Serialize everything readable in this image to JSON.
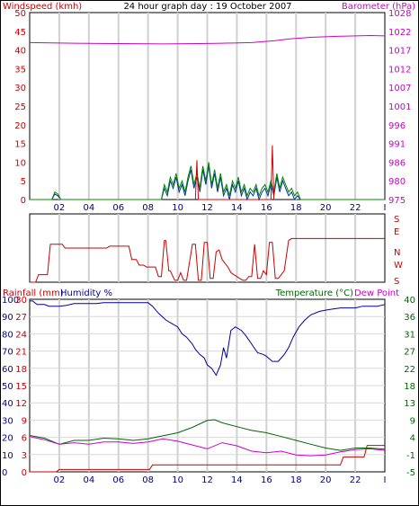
{
  "chart_data": [
    {
      "type": "line",
      "panel": "wind-barometer",
      "title": "24 hour graph day : 19 October 2007",
      "ylabel_left": "Windspeed (kmh)",
      "ylabel_right": "Barometer (hPa)",
      "x_ticks": [
        "02",
        "04",
        "06",
        "08",
        "10",
        "12",
        "14",
        "16",
        "18",
        "20",
        "22",
        "I"
      ],
      "left_ticks": [
        "0",
        "5",
        "10",
        "15",
        "20",
        "25",
        "30",
        "35",
        "40",
        "45",
        "50"
      ],
      "right_ticks": [
        "975",
        "980",
        "986",
        "991",
        "996",
        "1001",
        "1007",
        "1012",
        "1017",
        "1022",
        "1028"
      ],
      "ylim_left": [
        0,
        50
      ],
      "ylim_right": [
        975,
        1028
      ],
      "grid": true,
      "series": [
        {
          "name": "Barometer",
          "axis": "right",
          "color": "#cc00cc",
          "x": [
            0,
            3,
            6,
            9,
            11.5,
            13,
            15,
            16.5,
            17.5,
            19,
            21,
            23,
            24
          ],
          "y": [
            1019.5,
            1019.3,
            1019.2,
            1019.1,
            1019.2,
            1019.3,
            1019.5,
            1020,
            1020.5,
            1021,
            1021.3,
            1021.5,
            1021.4
          ]
        },
        {
          "name": "Windspeed",
          "axis": "left",
          "color": "#003399",
          "x": [
            0,
            1.5,
            1.7,
            1.9,
            2.1,
            8.9,
            9.1,
            9.3,
            9.5,
            9.7,
            9.9,
            10.1,
            10.3,
            10.5,
            10.7,
            10.9,
            11.1,
            11.3,
            11.5,
            11.7,
            11.9,
            12.1,
            12.3,
            12.5,
            12.7,
            12.9,
            13.1,
            13.3,
            13.5,
            13.7,
            13.9,
            14.1,
            14.3,
            14.5,
            14.7,
            14.9,
            15.1,
            15.3,
            15.5,
            15.7,
            15.9,
            16.1,
            16.3,
            16.5,
            16.7,
            16.9,
            17.1,
            17.3,
            17.5,
            17.7,
            17.9,
            18.1,
            18.3,
            24
          ],
          "y": [
            0,
            0,
            1.5,
            1,
            0,
            0,
            3,
            1,
            5,
            3,
            6,
            2,
            4,
            1,
            5,
            8,
            3,
            6,
            2,
            8,
            4,
            9,
            3,
            7,
            2,
            6,
            1,
            3,
            0,
            4,
            2,
            5,
            1,
            3,
            0,
            2,
            1,
            3,
            0,
            2,
            3,
            1,
            4,
            1,
            6,
            2,
            5,
            3,
            1,
            2,
            0,
            1,
            0,
            0
          ]
        },
        {
          "name": "Gust",
          "axis": "left",
          "color": "#008800",
          "x": [
            0,
            1.5,
            1.7,
            1.9,
            2.1,
            8.9,
            9.1,
            9.3,
            9.5,
            9.7,
            9.9,
            10.1,
            10.3,
            10.5,
            10.7,
            10.9,
            11.1,
            11.3,
            11.5,
            11.7,
            11.9,
            12.1,
            12.3,
            12.5,
            12.7,
            12.9,
            13.1,
            13.3,
            13.5,
            13.7,
            13.9,
            14.1,
            14.3,
            14.5,
            14.7,
            14.9,
            15.1,
            15.3,
            15.5,
            15.7,
            15.9,
            16.1,
            16.3,
            16.5,
            16.7,
            16.9,
            17.1,
            17.3,
            17.5,
            17.7,
            17.9,
            18.1,
            18.3,
            24
          ],
          "y": [
            0,
            0,
            2,
            1.5,
            0,
            0,
            4,
            2,
            6,
            4,
            7,
            3,
            5,
            2,
            6,
            9,
            4,
            7,
            3,
            9,
            5,
            10,
            4,
            8,
            3,
            7,
            2,
            4,
            1,
            5,
            3,
            6,
            2,
            4,
            1,
            3,
            2,
            4,
            1,
            3,
            4,
            2,
            5,
            2,
            7,
            3,
            6,
            4,
            2,
            3,
            1,
            2,
            0,
            0
          ]
        },
        {
          "name": "Gust peaks",
          "axis": "left",
          "color": "#dd0000",
          "x": [
            11.2,
            11.3,
            11.4,
            16.3,
            16.4,
            16.5
          ],
          "y": [
            0,
            10.5,
            0,
            0,
            14.5,
            0
          ]
        }
      ]
    },
    {
      "type": "line",
      "panel": "wind-direction",
      "ylabel_right": [
        "S",
        "E",
        "N",
        "W",
        "S"
      ],
      "ylim": [
        0,
        360
      ],
      "grid": true,
      "series": [
        {
          "name": "Direction",
          "color": "#cc0000",
          "x": [
            0,
            0.4,
            0.6,
            1.2,
            1.4,
            2.2,
            2.4,
            5.2,
            5.4,
            6.7,
            6.9,
            7.2,
            7.4,
            7.7,
            7.9,
            8.5,
            8.7,
            8.9,
            9.1,
            9.2,
            9.4,
            9.5,
            9.8,
            10.0,
            10.2,
            10.4,
            10.6,
            11.0,
            11.2,
            11.4,
            11.6,
            11.8,
            12.0,
            12.2,
            12.4,
            12.6,
            12.8,
            13.0,
            13.2,
            13.4,
            13.6,
            13.8,
            14.0,
            14.2,
            14.4,
            14.6,
            14.8,
            15.0,
            15.2,
            15.4,
            15.6,
            15.8,
            16.0,
            16.2,
            16.4,
            16.6,
            16.8,
            17.0,
            17.2,
            17.5,
            17.7,
            24
          ],
          "y": [
            0,
            0,
            40,
            40,
            200,
            200,
            180,
            180,
            190,
            190,
            120,
            120,
            90,
            90,
            80,
            80,
            30,
            30,
            220,
            220,
            60,
            60,
            10,
            10,
            50,
            10,
            10,
            200,
            200,
            10,
            10,
            210,
            210,
            20,
            20,
            160,
            170,
            120,
            100,
            80,
            50,
            40,
            30,
            20,
            10,
            10,
            30,
            30,
            200,
            20,
            20,
            60,
            40,
            210,
            210,
            20,
            20,
            40,
            60,
            220,
            230,
            230
          ]
        }
      ]
    },
    {
      "type": "line",
      "panel": "rain-humidity-temperature",
      "ylabel_left": "Rainfall (mm)",
      "ylabel_humidity": "Humidity %",
      "ylabel_right": "Temperature (°C)",
      "ylabel_right2": "Dew Point",
      "left_ticks": [
        "0",
        "10",
        "20",
        "30",
        "40",
        "50",
        "60",
        "70",
        "80",
        "90",
        "100"
      ],
      "mid_ticks": [
        "0",
        "3",
        "6",
        "9",
        "12",
        "15",
        "18",
        "21",
        "24",
        "27",
        "30"
      ],
      "right_ticks": [
        "-5",
        "-1",
        "4",
        "9",
        "13",
        "18",
        "22",
        "27",
        "31",
        "36",
        "40"
      ],
      "x_ticks": [
        "02",
        "04",
        "06",
        "08",
        "10",
        "12",
        "14",
        "16",
        "18",
        "20",
        "22",
        "I"
      ],
      "ylim_left": [
        0,
        100
      ],
      "ylim_mid": [
        0,
        30
      ],
      "ylim_right": [
        -5,
        40
      ],
      "grid": true,
      "series": [
        {
          "name": "Humidity",
          "axis": "left",
          "color": "#000099",
          "x": [
            0,
            0.2,
            0.5,
            1,
            1.3,
            2,
            2.5,
            3,
            4.5,
            5,
            5.5,
            6,
            8,
            8.3,
            8.7,
            9.2,
            9.6,
            10,
            10.3,
            10.6,
            11,
            11.2,
            11.5,
            11.8,
            12,
            12.3,
            12.6,
            12.9,
            13.1,
            13.3,
            13.6,
            13.9,
            14.3,
            14.6,
            15,
            15.4,
            15.8,
            16,
            16.4,
            16.8,
            17.2,
            17.5,
            17.8,
            18.2,
            18.6,
            19,
            19.6,
            20.2,
            21,
            22,
            22.5,
            23,
            23.5,
            24
          ],
          "y": [
            99,
            99,
            97,
            97,
            96,
            96,
            96.5,
            97.5,
            97.5,
            98,
            98,
            98,
            98,
            96,
            92,
            88,
            86,
            84,
            80,
            78,
            74,
            71,
            68,
            66,
            62,
            60,
            56,
            62,
            72,
            66,
            82,
            84,
            82,
            79,
            74,
            69,
            68,
            67,
            64,
            64,
            68,
            72,
            78,
            84,
            88,
            91,
            93,
            94,
            95,
            95,
            96,
            96,
            96,
            97
          ]
        },
        {
          "name": "Rainfall",
          "axis": "mid",
          "color": "#cc0000",
          "x": [
            0,
            1.8,
            2,
            8.1,
            8.3,
            21,
            21.2,
            22.6,
            22.8,
            23.6,
            24
          ],
          "y": [
            0,
            0,
            0.4,
            0.4,
            1.2,
            1.2,
            2.6,
            2.6,
            4.6,
            4.6,
            4.6
          ]
        },
        {
          "name": "Temperature",
          "axis": "right",
          "color": "#006600",
          "x": [
            0,
            1,
            2,
            3,
            4,
            5,
            6,
            7,
            8,
            9,
            10,
            11,
            12,
            12.5,
            13,
            14,
            15,
            16,
            17,
            18,
            19,
            20,
            21,
            22,
            23,
            24
          ],
          "y": [
            4.5,
            3.8,
            2.2,
            3.2,
            3.2,
            3.8,
            3.6,
            3.2,
            3.6,
            4.4,
            5.2,
            6.6,
            8.4,
            8.6,
            7.8,
            6.8,
            5.8,
            5.2,
            4.2,
            3.2,
            2.2,
            1.2,
            0.6,
            1.2,
            1.2,
            0.9
          ]
        },
        {
          "name": "Dew Point",
          "axis": "right",
          "color": "#cc00cc",
          "x": [
            0,
            1,
            2,
            3,
            4,
            5,
            6,
            7,
            8,
            9,
            10,
            11,
            12,
            13,
            14,
            15,
            16,
            17,
            18,
            19,
            20,
            21,
            22,
            23,
            24
          ],
          "y": [
            4.2,
            3.4,
            2.2,
            2.6,
            2.2,
            2.8,
            2.8,
            2.4,
            2.8,
            3.6,
            3.0,
            2.0,
            1.0,
            2.6,
            1.8,
            0.4,
            0.0,
            0.4,
            -0.6,
            -0.8,
            -0.6,
            0.2,
            0.8,
            1.0,
            0.6
          ]
        }
      ]
    }
  ]
}
